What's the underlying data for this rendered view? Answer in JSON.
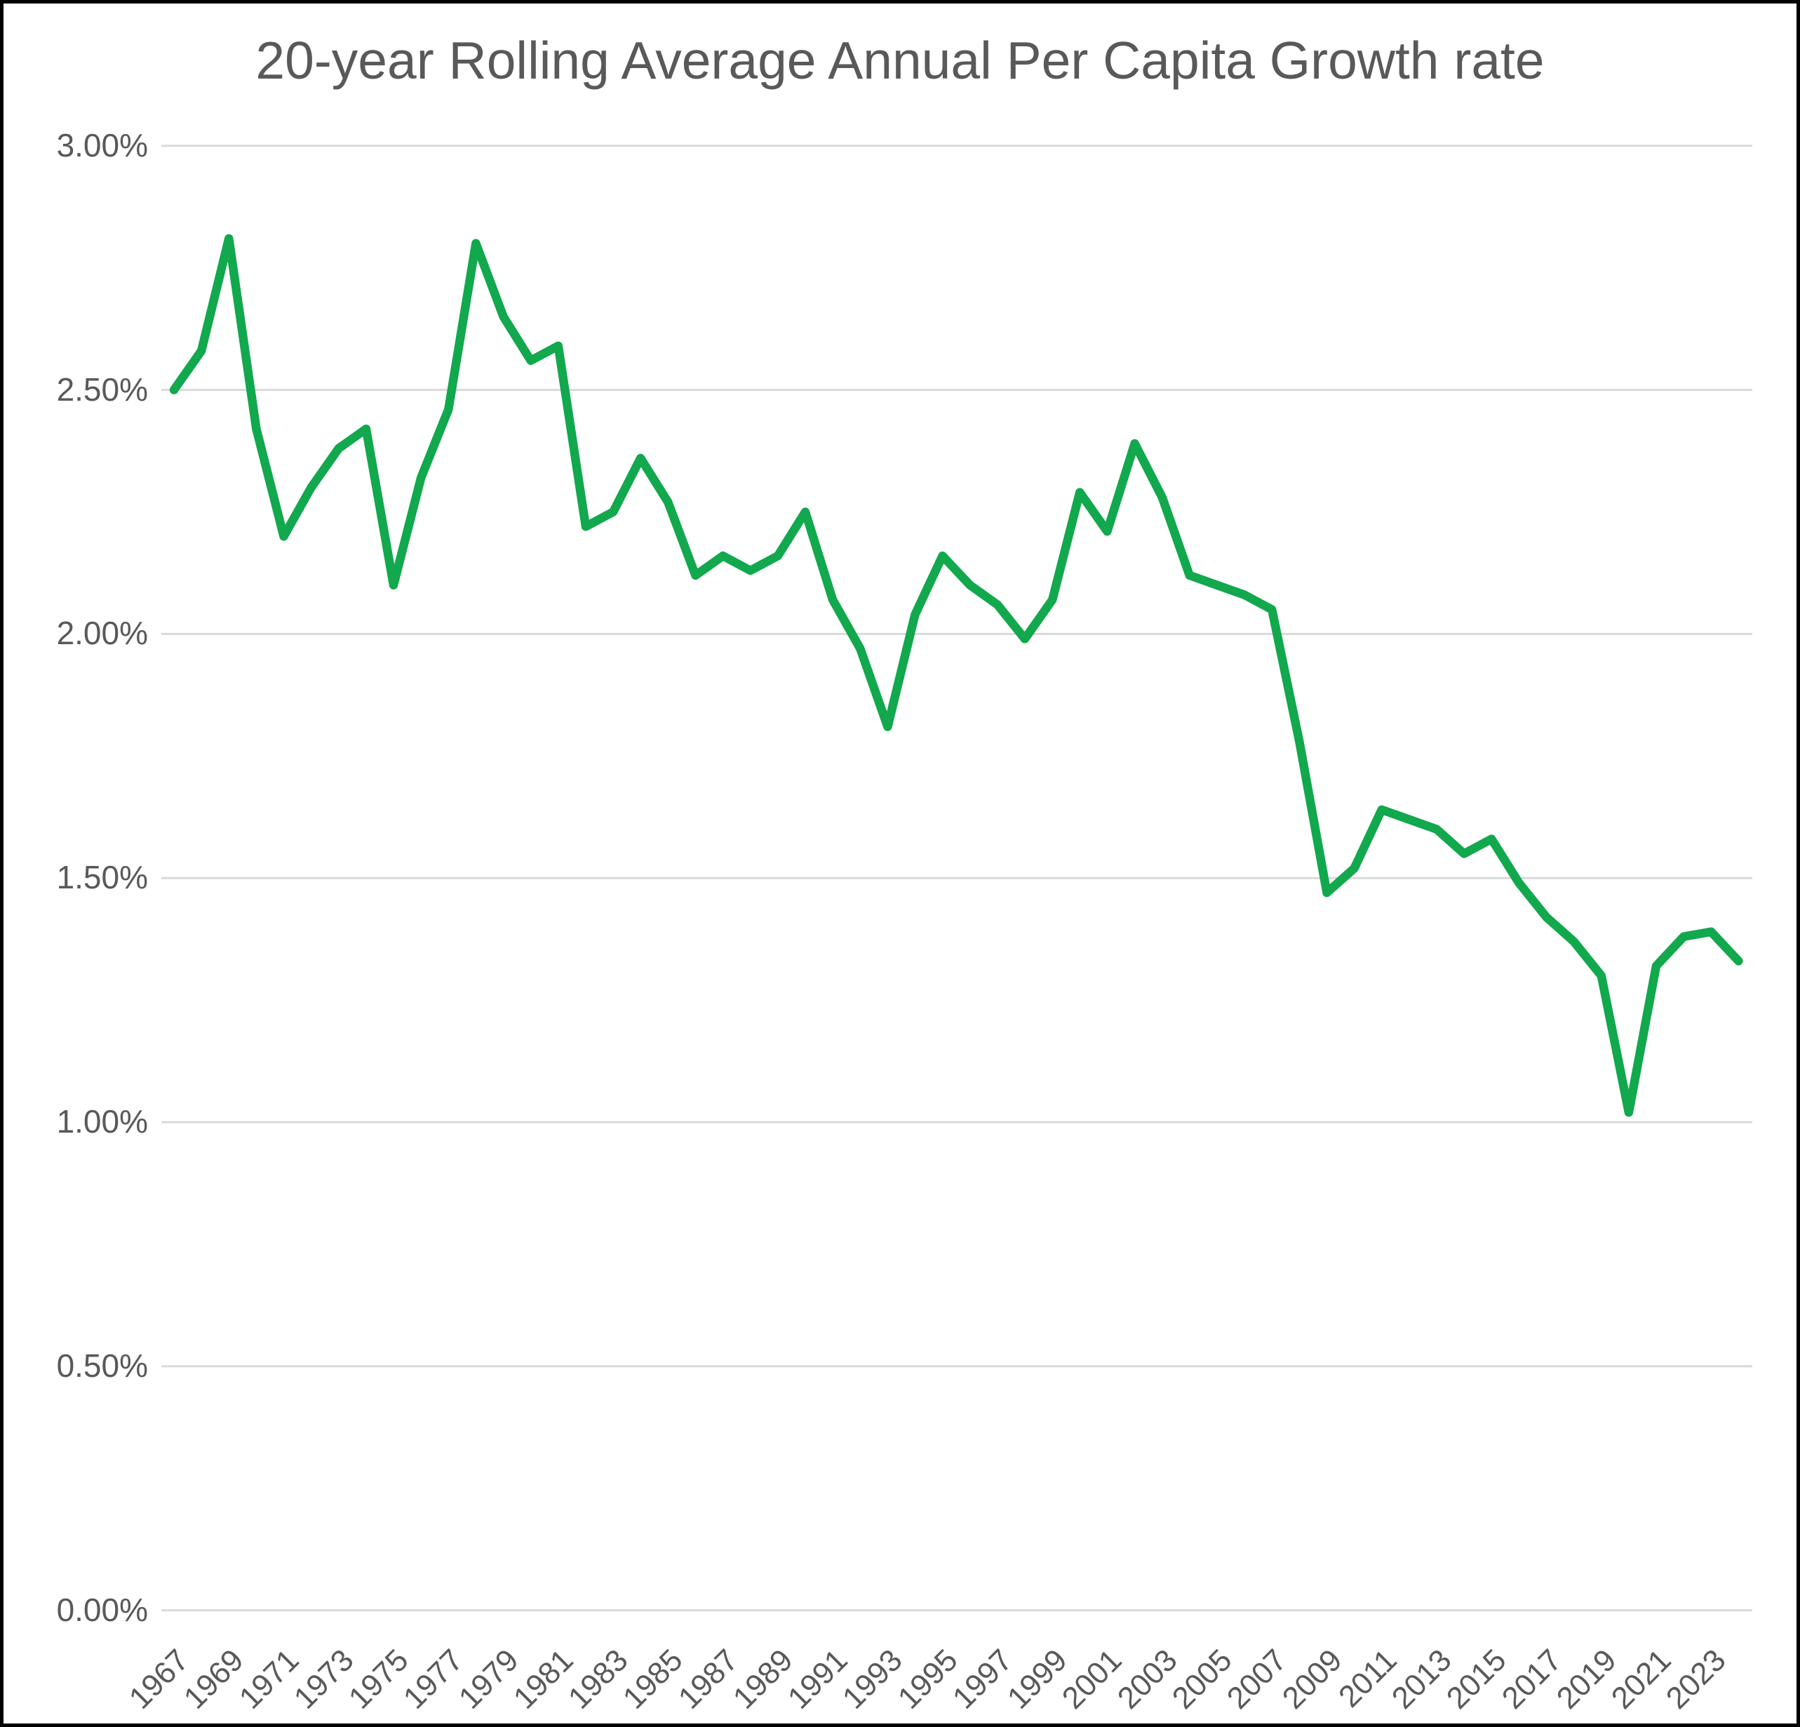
{
  "chart_data": {
    "type": "line",
    "title": "20-year Rolling Average Annual Per Capita Growth rate",
    "xlabel": "",
    "ylabel": "",
    "x": [
      1967,
      1968,
      1969,
      1970,
      1971,
      1972,
      1973,
      1974,
      1975,
      1976,
      1977,
      1978,
      1979,
      1980,
      1981,
      1982,
      1983,
      1984,
      1985,
      1986,
      1987,
      1988,
      1989,
      1990,
      1991,
      1992,
      1993,
      1994,
      1995,
      1996,
      1997,
      1998,
      1999,
      2000,
      2001,
      2002,
      2003,
      2004,
      2005,
      2006,
      2007,
      2008,
      2009,
      2010,
      2011,
      2012,
      2013,
      2014,
      2015,
      2016,
      2017,
      2018,
      2019,
      2020,
      2021,
      2022,
      2023,
      2024
    ],
    "values_percent": [
      2.5,
      2.58,
      2.81,
      2.42,
      2.2,
      2.3,
      2.38,
      2.42,
      2.1,
      2.32,
      2.46,
      2.8,
      2.65,
      2.56,
      2.59,
      2.22,
      2.25,
      2.36,
      2.27,
      2.12,
      2.16,
      2.13,
      2.16,
      2.25,
      2.07,
      1.97,
      1.81,
      2.04,
      2.16,
      2.1,
      2.06,
      1.99,
      2.07,
      2.29,
      2.21,
      2.39,
      2.28,
      2.12,
      2.1,
      2.08,
      2.05,
      1.78,
      1.47,
      1.52,
      1.64,
      1.62,
      1.6,
      1.55,
      1.58,
      1.49,
      1.42,
      1.37,
      1.3,
      1.02,
      1.32,
      1.38,
      1.39,
      1.33
    ],
    "ylim": [
      0,
      3
    ],
    "ytick_step_percent": 0.5,
    "ytick_labels": [
      "3.00%",
      "2.50%",
      "2.00%",
      "1.50%",
      "1.00%",
      "0.50%",
      "0.00%"
    ],
    "ytick_values": [
      3.0,
      2.5,
      2.0,
      1.5,
      1.0,
      0.5,
      0.0
    ],
    "xtick_labels": [
      "1967",
      "1969",
      "1971",
      "1973",
      "1975",
      "1977",
      "1979",
      "1981",
      "1983",
      "1985",
      "1987",
      "1989",
      "1991",
      "1993",
      "1995",
      "1997",
      "1999",
      "2001",
      "2003",
      "2005",
      "2007",
      "2009",
      "2011",
      "2013",
      "2015",
      "2017",
      "2019",
      "2021",
      "2023"
    ],
    "grid": "horizontal",
    "legend": "none",
    "colors": {
      "line": "#12a84d",
      "gridline": "#d9d9d9",
      "label_text": "#595959",
      "title_text": "#595959",
      "background": "#ffffff",
      "frame": "#000000"
    }
  }
}
